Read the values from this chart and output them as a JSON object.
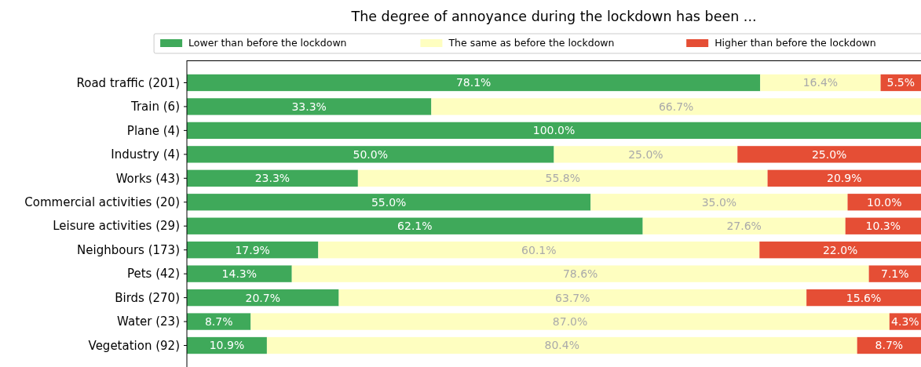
{
  "chart_data": {
    "type": "bar",
    "orientation": "horizontal",
    "stacked": true,
    "title": "The degree of annoyance during the lockdown has been ...",
    "categories": [
      "Road traffic (201)",
      "Train (6)",
      "Plane (4)",
      "Industry (4)",
      "Works (43)",
      "Commercial activities (20)",
      "Leisure activities (29)",
      "Neighbours (173)",
      "Pets (42)",
      "Birds (270)",
      "Water (23)",
      "Vegetation (92)"
    ],
    "series": [
      {
        "name": "Lower than before the lockdown",
        "color": "#3fa95a",
        "values": [
          78.1,
          33.3,
          100.0,
          50.0,
          23.3,
          55.0,
          62.1,
          17.9,
          14.3,
          20.7,
          8.7,
          10.9
        ],
        "value_labels": [
          "78.1%",
          "33.3%",
          "100.0%",
          "50.0%",
          "23.3%",
          "55.0%",
          "62.1%",
          "17.9%",
          "14.3%",
          "20.7%",
          "8.7%",
          "10.9%"
        ]
      },
      {
        "name": "The same as before the lockdown",
        "color": "#fefec0",
        "values": [
          16.4,
          66.7,
          0,
          25.0,
          55.8,
          35.0,
          27.6,
          60.1,
          78.6,
          63.7,
          87.0,
          80.4
        ],
        "value_labels": [
          "16.4%",
          "66.7%",
          null,
          "25.0%",
          "55.8%",
          "35.0%",
          "27.6%",
          "60.1%",
          "78.6%",
          "63.7%",
          "87.0%",
          "80.4%"
        ]
      },
      {
        "name": "Higher than before the lockdown",
        "color": "#e54e35",
        "values": [
          5.5,
          0,
          0,
          25.0,
          20.9,
          10.0,
          10.3,
          22.0,
          7.1,
          15.6,
          4.3,
          8.7
        ],
        "value_labels": [
          "5.5%",
          null,
          null,
          "25.0%",
          "20.9%",
          "10.0%",
          "10.3%",
          "22.0%",
          "7.1%",
          "15.6%",
          "4.3%",
          "8.7%"
        ]
      }
    ],
    "xlim": [
      0,
      100
    ],
    "tick_labels": "y",
    "legend": "top"
  }
}
